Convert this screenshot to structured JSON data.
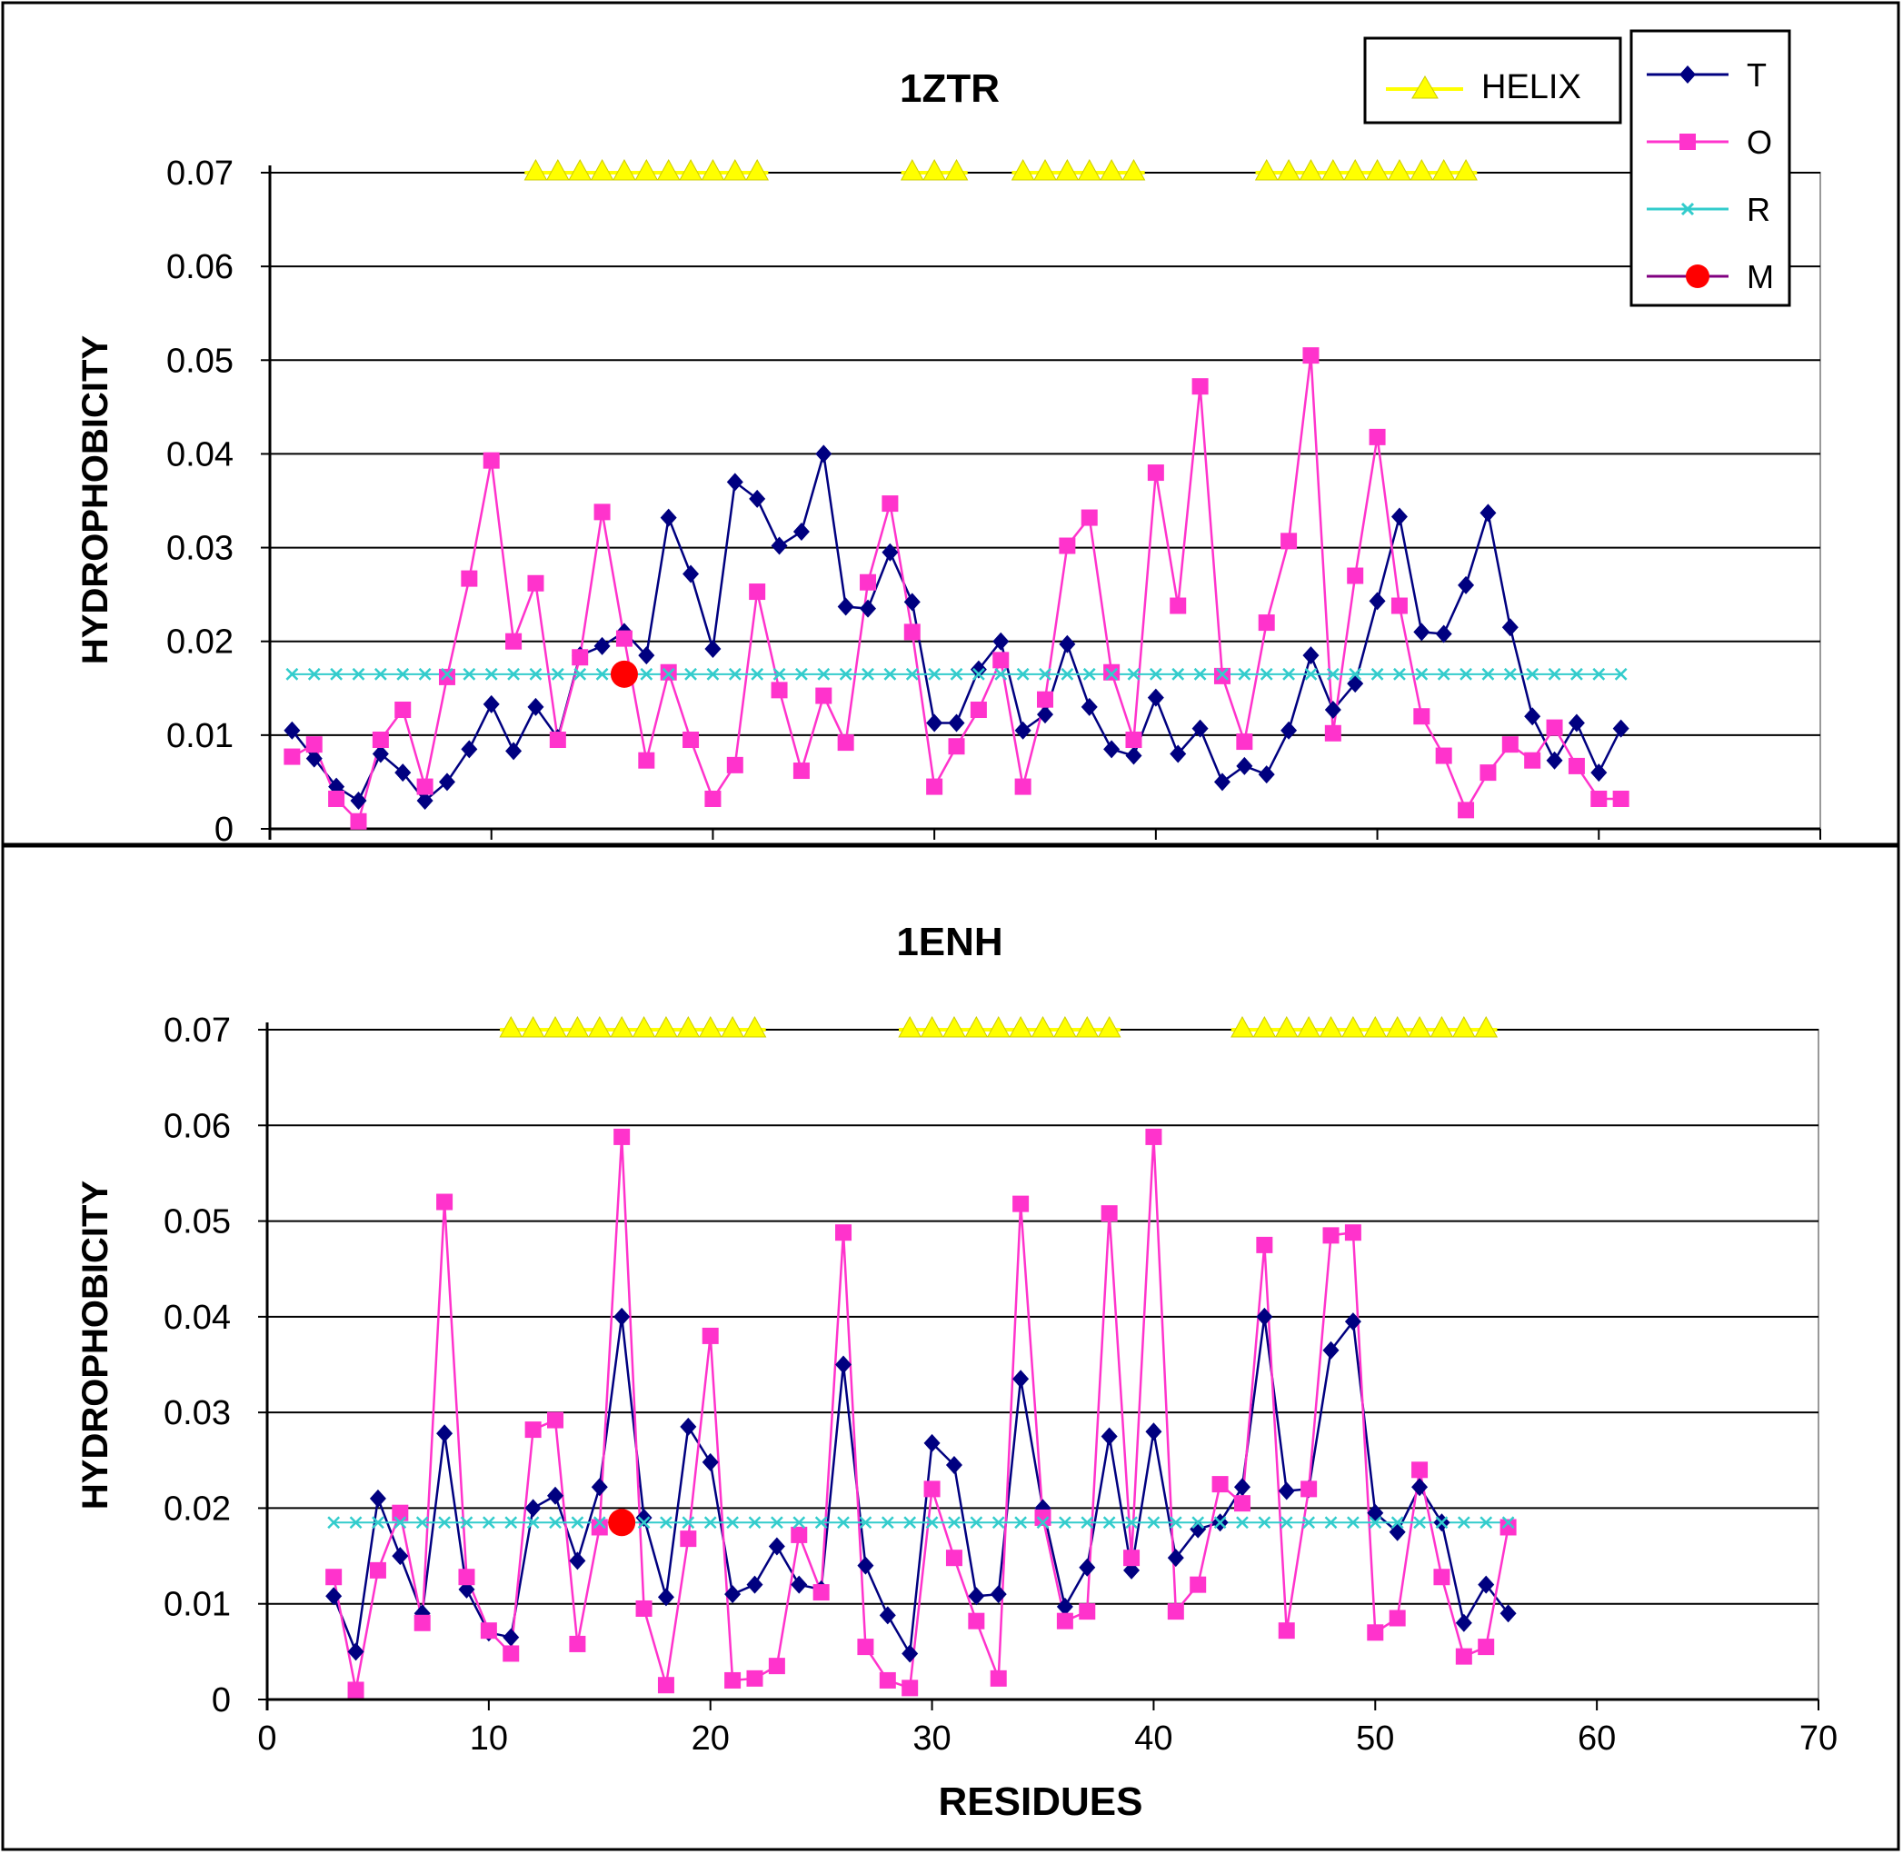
{
  "chart_data": [
    {
      "type": "line",
      "title": "1ZTR",
      "xlabel": "",
      "ylabel": "HYDROPHOBICITY",
      "xlim": [
        0,
        70
      ],
      "ylim": [
        0,
        0.07
      ],
      "x_ticks": [
        "0",
        "10",
        "20",
        "30",
        "40",
        "50",
        "60",
        "70"
      ],
      "y_ticks": [
        "0",
        "0.01",
        "0.02",
        "0.03",
        "0.04",
        "0.05",
        "0.06",
        "0.07"
      ],
      "grid": "horizontal",
      "helix_segments": [
        [
          12,
          22
        ],
        [
          29,
          31
        ],
        [
          34,
          39
        ],
        [
          45,
          54
        ]
      ],
      "series": [
        {
          "name": "T",
          "color": "#000080",
          "marker": "diamond",
          "x": [
            1,
            2,
            3,
            4,
            5,
            6,
            7,
            8,
            9,
            10,
            11,
            12,
            13,
            14,
            15,
            16,
            17,
            18,
            19,
            20,
            21,
            22,
            23,
            24,
            25,
            26,
            27,
            28,
            29,
            30,
            31,
            32,
            33,
            34,
            35,
            36,
            37,
            38,
            39,
            40,
            41,
            42,
            43,
            44,
            45,
            46,
            47,
            48,
            49,
            50,
            51,
            52,
            53,
            54,
            55,
            56,
            57,
            58,
            59,
            60,
            61
          ],
          "values": [
            0.0105,
            0.0075,
            0.0045,
            0.003,
            0.008,
            0.006,
            0.003,
            0.005,
            0.0085,
            0.0133,
            0.0083,
            0.013,
            0.0097,
            0.0185,
            0.0195,
            0.021,
            0.0185,
            0.0332,
            0.0272,
            0.0192,
            0.037,
            0.0352,
            0.0302,
            0.0317,
            0.04,
            0.0237,
            0.0235,
            0.0295,
            0.0242,
            0.0113,
            0.0113,
            0.017,
            0.02,
            0.0105,
            0.0122,
            0.0197,
            0.013,
            0.0085,
            0.0078,
            0.014,
            0.008,
            0.0107,
            0.005,
            0.0067,
            0.0058,
            0.0105,
            0.0185,
            0.0127,
            0.0155,
            0.0243,
            0.0333,
            0.021,
            0.0208,
            0.026,
            0.0337,
            0.0215,
            0.012,
            0.0073,
            0.0113,
            0.006,
            0.0107
          ]
        },
        {
          "name": "O",
          "color": "#ff33cc",
          "marker": "square",
          "x": [
            1,
            2,
            3,
            4,
            5,
            6,
            7,
            8,
            9,
            10,
            11,
            12,
            13,
            14,
            15,
            16,
            17,
            18,
            19,
            20,
            21,
            22,
            23,
            24,
            25,
            26,
            27,
            28,
            29,
            30,
            31,
            32,
            33,
            34,
            35,
            36,
            37,
            38,
            39,
            40,
            41,
            42,
            43,
            44,
            45,
            46,
            47,
            48,
            49,
            50,
            51,
            52,
            53,
            54,
            55,
            56,
            57,
            58,
            59,
            60,
            61
          ],
          "values": [
            0.0077,
            0.009,
            0.0032,
            0.0008,
            0.0095,
            0.0127,
            0.0045,
            0.0162,
            0.0267,
            0.0393,
            0.02,
            0.0262,
            0.0095,
            0.0183,
            0.0338,
            0.0203,
            0.0073,
            0.0167,
            0.0095,
            0.0032,
            0.0068,
            0.0253,
            0.0148,
            0.0062,
            0.0142,
            0.0092,
            0.0263,
            0.0347,
            0.021,
            0.0045,
            0.0088,
            0.0127,
            0.018,
            0.0045,
            0.0138,
            0.0302,
            0.0332,
            0.0167,
            0.0095,
            0.038,
            0.0238,
            0.0472,
            0.0163,
            0.0093,
            0.022,
            0.0307,
            0.0505,
            0.0102,
            0.027,
            0.0418,
            0.0238,
            0.012,
            0.0078,
            0.002,
            0.006,
            0.009,
            0.0073,
            0.0108,
            0.0067,
            0.0032,
            0.0032
          ]
        },
        {
          "name": "R",
          "color": "#33cccc",
          "marker": "x",
          "x": [
            1,
            2,
            3,
            4,
            5,
            6,
            7,
            8,
            9,
            10,
            11,
            12,
            13,
            14,
            15,
            16,
            17,
            18,
            19,
            20,
            21,
            22,
            23,
            24,
            25,
            26,
            27,
            28,
            29,
            30,
            31,
            32,
            33,
            34,
            35,
            36,
            37,
            38,
            39,
            40,
            41,
            42,
            43,
            44,
            45,
            46,
            47,
            48,
            49,
            50,
            51,
            52,
            53,
            54,
            55,
            56,
            57,
            58,
            59,
            60,
            61
          ],
          "values": [
            0.0165,
            0.0165,
            0.0165,
            0.0165,
            0.0165,
            0.0165,
            0.0165,
            0.0165,
            0.0165,
            0.0165,
            0.0165,
            0.0165,
            0.0165,
            0.0165,
            0.0165,
            0.0165,
            0.0165,
            0.0165,
            0.0165,
            0.0165,
            0.0165,
            0.0165,
            0.0165,
            0.0165,
            0.0165,
            0.0165,
            0.0165,
            0.0165,
            0.0165,
            0.0165,
            0.0165,
            0.0165,
            0.0165,
            0.0165,
            0.0165,
            0.0165,
            0.0165,
            0.0165,
            0.0165,
            0.0165,
            0.0165,
            0.0165,
            0.0165,
            0.0165,
            0.0165,
            0.0165,
            0.0165,
            0.0165,
            0.0165,
            0.0165,
            0.0165,
            0.0165,
            0.0165,
            0.0165,
            0.0165,
            0.0165,
            0.0165,
            0.0165,
            0.0165,
            0.0165,
            0.0165
          ]
        },
        {
          "name": "M",
          "color": "#ff0000",
          "marker": "circle",
          "x": [
            16
          ],
          "values": [
            0.0165
          ]
        }
      ]
    },
    {
      "type": "line",
      "title": "1ENH",
      "xlabel": "RESIDUES",
      "ylabel": "HYDROPHOBICITY",
      "xlim": [
        0,
        70
      ],
      "ylim": [
        0,
        0.07
      ],
      "x_ticks": [
        "0",
        "10",
        "20",
        "30",
        "40",
        "50",
        "60",
        "70"
      ],
      "y_ticks": [
        "0",
        "0.01",
        "0.02",
        "0.03",
        "0.04",
        "0.05",
        "0.06",
        "0.07"
      ],
      "grid": "horizontal",
      "helix_segments": [
        [
          11,
          22
        ],
        [
          29,
          38
        ],
        [
          44,
          55
        ]
      ],
      "series": [
        {
          "name": "T",
          "color": "#000080",
          "marker": "diamond",
          "x": [
            3,
            4,
            5,
            6,
            7,
            8,
            9,
            10,
            11,
            12,
            13,
            14,
            15,
            16,
            17,
            18,
            19,
            20,
            21,
            22,
            23,
            24,
            25,
            26,
            27,
            28,
            29,
            30,
            31,
            32,
            33,
            34,
            35,
            36,
            37,
            38,
            39,
            40,
            41,
            42,
            43,
            44,
            45,
            46,
            47,
            48,
            49,
            50,
            51,
            52,
            53,
            54,
            55,
            56
          ],
          "values": [
            0.0108,
            0.005,
            0.021,
            0.015,
            0.009,
            0.0278,
            0.0115,
            0.007,
            0.0065,
            0.02,
            0.0213,
            0.0145,
            0.0222,
            0.04,
            0.019,
            0.0107,
            0.0285,
            0.0248,
            0.011,
            0.012,
            0.016,
            0.012,
            0.0115,
            0.035,
            0.014,
            0.0088,
            0.0048,
            0.0268,
            0.0245,
            0.0108,
            0.011,
            0.0335,
            0.02,
            0.0097,
            0.0138,
            0.0275,
            0.0135,
            0.028,
            0.0148,
            0.0178,
            0.0185,
            0.0222,
            0.04,
            0.0218,
            0.022,
            0.0365,
            0.0395,
            0.0195,
            0.0175,
            0.0222,
            0.0185,
            0.008,
            0.012,
            0.009
          ]
        },
        {
          "name": "O",
          "color": "#ff33cc",
          "marker": "square",
          "x": [
            3,
            4,
            5,
            6,
            7,
            8,
            9,
            10,
            11,
            12,
            13,
            14,
            15,
            16,
            17,
            18,
            19,
            20,
            21,
            22,
            23,
            24,
            25,
            26,
            27,
            28,
            29,
            30,
            31,
            32,
            33,
            34,
            35,
            36,
            37,
            38,
            39,
            40,
            41,
            42,
            43,
            44,
            45,
            46,
            47,
            48,
            49,
            50,
            51,
            52,
            53,
            54,
            55,
            56
          ],
          "values": [
            0.0128,
            0.001,
            0.0135,
            0.0195,
            0.008,
            0.052,
            0.0128,
            0.0072,
            0.0048,
            0.0282,
            0.0292,
            0.0058,
            0.018,
            0.0588,
            0.0095,
            0.0015,
            0.0168,
            0.038,
            0.002,
            0.0022,
            0.0035,
            0.0172,
            0.0112,
            0.0488,
            0.0055,
            0.002,
            0.0012,
            0.022,
            0.0148,
            0.0082,
            0.0022,
            0.0518,
            0.019,
            0.0082,
            0.0092,
            0.0508,
            0.0148,
            0.0588,
            0.0092,
            0.012,
            0.0225,
            0.0205,
            0.0475,
            0.0072,
            0.022,
            0.0485,
            0.0488,
            0.007,
            0.0085,
            0.024,
            0.0128,
            0.0045,
            0.0055,
            0.018
          ]
        },
        {
          "name": "R",
          "color": "#33cccc",
          "marker": "x",
          "x": [
            3,
            4,
            5,
            6,
            7,
            8,
            9,
            10,
            11,
            12,
            13,
            14,
            15,
            16,
            17,
            18,
            19,
            20,
            21,
            22,
            23,
            24,
            25,
            26,
            27,
            28,
            29,
            30,
            31,
            32,
            33,
            34,
            35,
            36,
            37,
            38,
            39,
            40,
            41,
            42,
            43,
            44,
            45,
            46,
            47,
            48,
            49,
            50,
            51,
            52,
            53,
            54,
            55,
            56
          ],
          "values": [
            0.0185,
            0.0185,
            0.0185,
            0.0185,
            0.0185,
            0.0185,
            0.0185,
            0.0185,
            0.0185,
            0.0185,
            0.0185,
            0.0185,
            0.0185,
            0.0185,
            0.0185,
            0.0185,
            0.0185,
            0.0185,
            0.0185,
            0.0185,
            0.0185,
            0.0185,
            0.0185,
            0.0185,
            0.0185,
            0.0185,
            0.0185,
            0.0185,
            0.0185,
            0.0185,
            0.0185,
            0.0185,
            0.0185,
            0.0185,
            0.0185,
            0.0185,
            0.0185,
            0.0185,
            0.0185,
            0.0185,
            0.0185,
            0.0185,
            0.0185,
            0.0185,
            0.0185,
            0.0185,
            0.0185,
            0.0185,
            0.0185,
            0.0185,
            0.0185,
            0.0185,
            0.0185,
            0.0185
          ]
        },
        {
          "name": "M",
          "color": "#ff0000",
          "marker": "circle",
          "x": [
            16
          ],
          "values": [
            0.0185
          ]
        }
      ]
    }
  ],
  "legends": {
    "helix_label": "HELIX",
    "series_labels": [
      "T",
      "O",
      "R",
      "M"
    ]
  },
  "colors": {
    "helix": "#ffff00",
    "T": "#000080",
    "O": "#ff33cc",
    "R": "#33cccc",
    "M": "#ff0000"
  }
}
